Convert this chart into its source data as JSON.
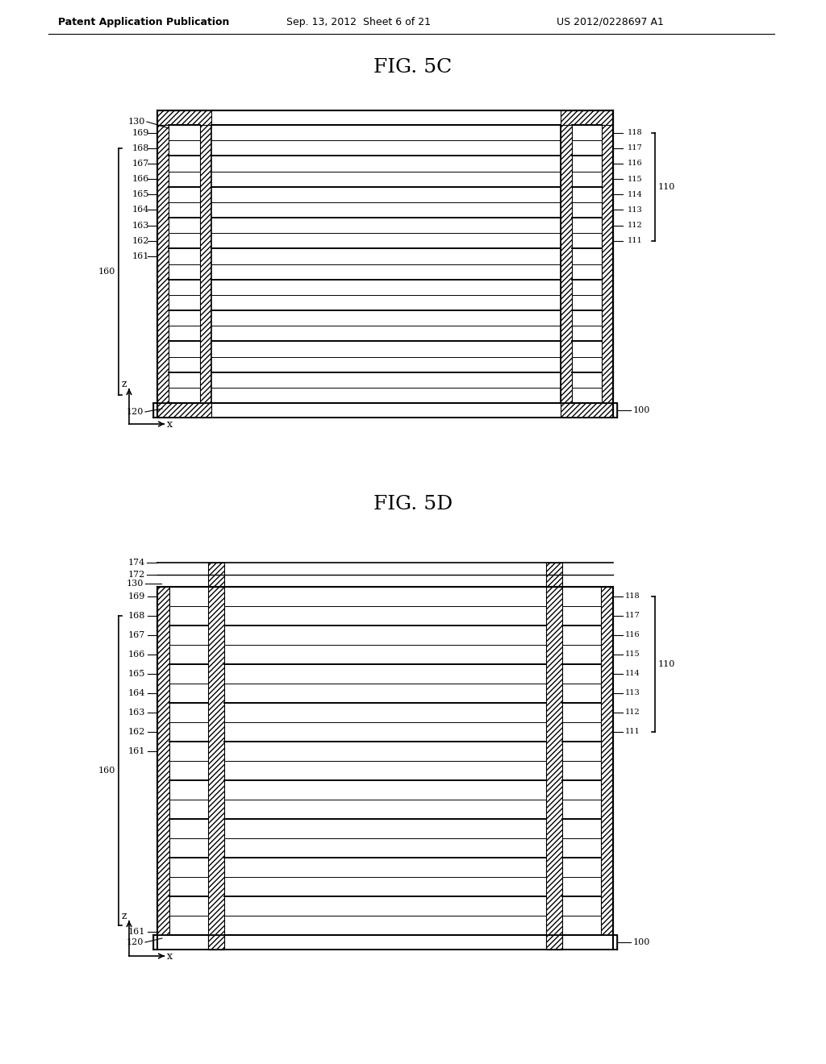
{
  "bg_color": "#ffffff",
  "header_left": "Patent Application Publication",
  "header_center": "Sep. 13, 2012  Sheet 6 of 21",
  "header_right": "US 2012/0228697 A1",
  "fig5c_title": "FIG. 5C",
  "fig5d_title": "FIG. 5D",
  "right_labels": [
    "118",
    "117",
    "116",
    "115",
    "114",
    "113",
    "112",
    "111"
  ],
  "right_label_110": "110",
  "left_label_160": "160",
  "label_100": "100",
  "line_color": "#000000",
  "text_color": "#000000",
  "font_size_header": 9,
  "font_size_label": 8,
  "font_size_title": 18
}
